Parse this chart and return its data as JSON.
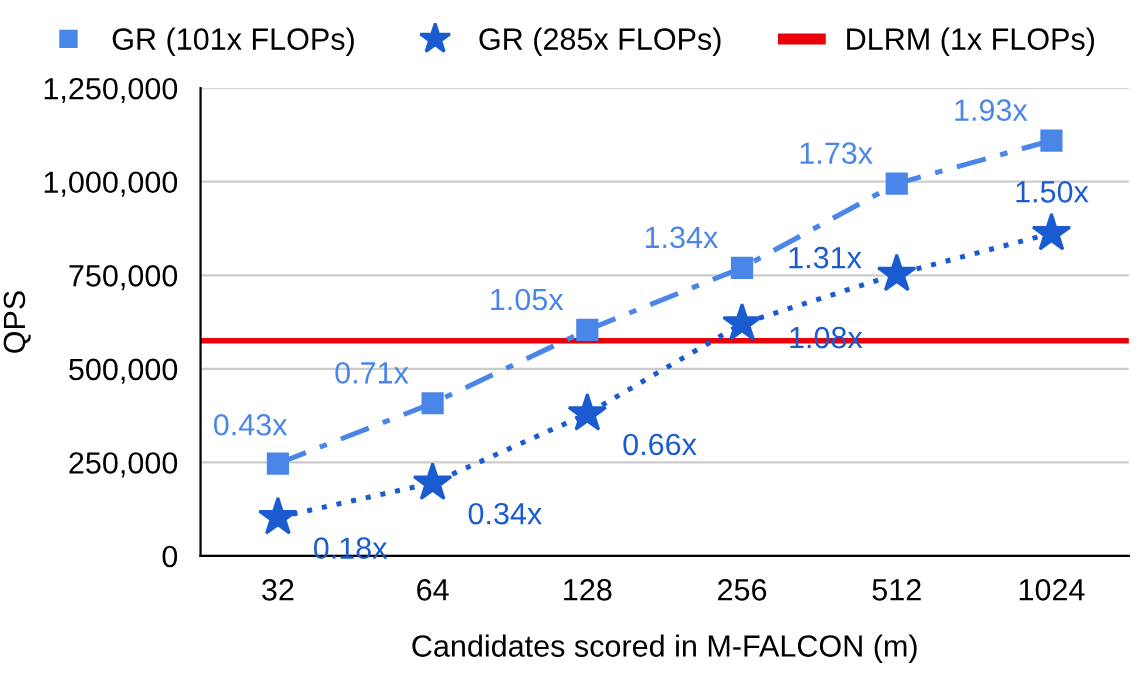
{
  "chart_data": {
    "type": "line",
    "xlabel": "Candidates scored in M-FALCON (m)",
    "ylabel": "QPS",
    "categories": [
      "32",
      "64",
      "128",
      "256",
      "512",
      "1024"
    ],
    "series": [
      {
        "name": "GR (101x FLOPs)",
        "color": "#4a86e8",
        "marker": "square",
        "line_style": "dashdot",
        "values": [
          247000,
          408000,
          604000,
          770000,
          995000,
          1110000
        ]
      },
      {
        "name": "GR (285x FLOPs)",
        "color": "#1a5bd0",
        "marker": "star",
        "line_style": "dotted",
        "values": [
          103000,
          195000,
          380000,
          621000,
          753000,
          862000
        ]
      }
    ],
    "annotations": [
      {
        "text": "0.43x",
        "x": "32",
        "y": 247000
      },
      {
        "text": "0.71x",
        "x": "64",
        "y": 408000
      },
      {
        "text": "1.05x",
        "x": "128",
        "y": 604000
      },
      {
        "text": "1.34x",
        "x": "256",
        "y": 770000
      },
      {
        "text": "1.73x",
        "x": "512",
        "y": 995000
      },
      {
        "text": "1.93x",
        "x": "1024",
        "y": 1110000
      },
      {
        "text": "0.18x",
        "x": "32",
        "y": 103000
      },
      {
        "text": "0.34x",
        "x": "64",
        "y": 195000
      },
      {
        "text": "0.66x",
        "x": "128",
        "y": 380000
      },
      {
        "text": "1.08x",
        "x": "256",
        "y": 621000
      },
      {
        "text": "1.31x",
        "x": "512",
        "y": 753000
      },
      {
        "text": "1.50x",
        "x": "1024",
        "y": 862000
      }
    ],
    "ref_lines": [
      {
        "axis": "y",
        "value": 575000,
        "label": "DLRM (1x FLOPs)",
        "color": "#e8000b",
        "line_style": "solid"
      }
    ],
    "ylim": [
      0,
      1250000
    ],
    "yticks": [
      {
        "value": 0,
        "label": "0"
      },
      {
        "value": 250000,
        "label": "250,000"
      },
      {
        "value": 500000,
        "label": "500,000"
      },
      {
        "value": 750000,
        "label": "750,000"
      },
      {
        "value": 1000000,
        "label": "1,000,000"
      },
      {
        "value": 1250000,
        "label": "1,250,000"
      }
    ],
    "grid": "y",
    "legend": "top"
  }
}
